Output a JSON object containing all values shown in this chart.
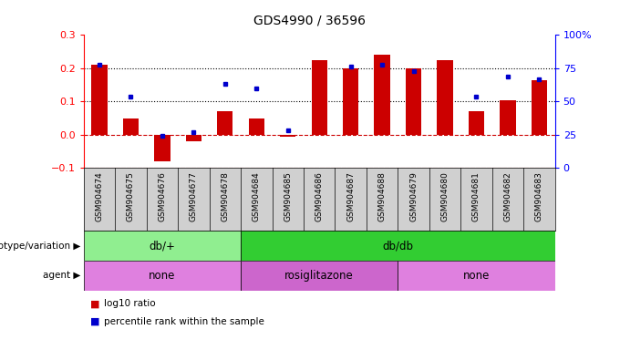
{
  "title": "GDS4990 / 36596",
  "samples": [
    "GSM904674",
    "GSM904675",
    "GSM904676",
    "GSM904677",
    "GSM904678",
    "GSM904684",
    "GSM904685",
    "GSM904686",
    "GSM904687",
    "GSM904688",
    "GSM904679",
    "GSM904680",
    "GSM904681",
    "GSM904682",
    "GSM904683"
  ],
  "log10_ratio": [
    0.21,
    0.05,
    -0.08,
    -0.02,
    0.07,
    0.05,
    -0.005,
    0.225,
    0.2,
    0.24,
    0.2,
    0.225,
    0.07,
    0.105,
    0.165
  ],
  "percentile_rank_pct": [
    78,
    54,
    24,
    27,
    63,
    60,
    28,
    null,
    76,
    78,
    73,
    null,
    54,
    69,
    67
  ],
  "bar_color": "#cc0000",
  "dot_color": "#0000cc",
  "ylim_left": [
    -0.1,
    0.3
  ],
  "ylim_right": [
    0,
    100
  ],
  "yticks_left": [
    -0.1,
    0.0,
    0.1,
    0.2,
    0.3
  ],
  "yticks_right": [
    0,
    25,
    50,
    75,
    100
  ],
  "hlines": [
    0.1,
    0.2
  ],
  "zero_line_color": "#cc0000",
  "genotype_groups": [
    {
      "label": "db/+",
      "start": 0,
      "end": 5,
      "color": "#90ee90"
    },
    {
      "label": "db/db",
      "start": 5,
      "end": 15,
      "color": "#32cd32"
    }
  ],
  "agent_groups": [
    {
      "label": "none",
      "start": 0,
      "end": 5,
      "color": "#dd77dd"
    },
    {
      "label": "rosiglitazone",
      "start": 5,
      "end": 10,
      "color": "#cc66cc"
    },
    {
      "label": "none",
      "start": 10,
      "end": 15,
      "color": "#dd77dd"
    }
  ],
  "genotype_label": "genotype/variation",
  "agent_label": "agent",
  "legend_items": [
    {
      "label": "log10 ratio",
      "color": "#cc0000"
    },
    {
      "label": "percentile rank within the sample",
      "color": "#0000cc"
    }
  ],
  "xlabel_bg": "#d0d0d0",
  "title_fontsize": 10,
  "bar_width": 0.5
}
